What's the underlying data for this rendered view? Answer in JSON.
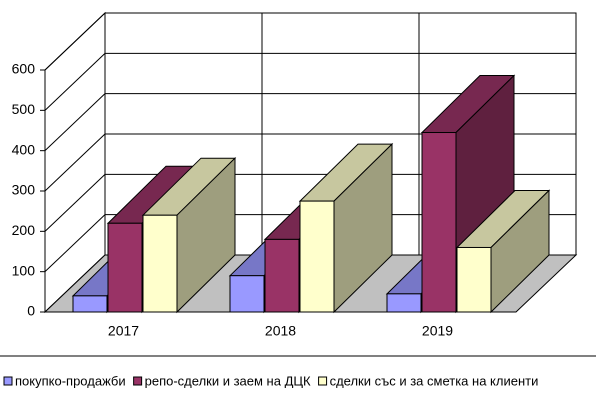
{
  "chart_data": {
    "type": "bar",
    "categories": [
      "2017",
      "2018",
      "2019"
    ],
    "series": [
      {
        "name": "покупко-продажби",
        "color": "#9999ff",
        "values": [
          40,
          90,
          45
        ]
      },
      {
        "name": "репо-сделки и заем на ДЦК",
        "color": "#993366",
        "values": [
          220,
          180,
          445
        ]
      },
      {
        "name": "сделки със и за сметка на клиенти",
        "color": "#ffffcc",
        "values": [
          240,
          275,
          160
        ]
      }
    ],
    "ylim": [
      0,
      600
    ],
    "yticks": [
      0,
      100,
      200,
      300,
      400,
      500,
      600
    ],
    "grid": true
  }
}
